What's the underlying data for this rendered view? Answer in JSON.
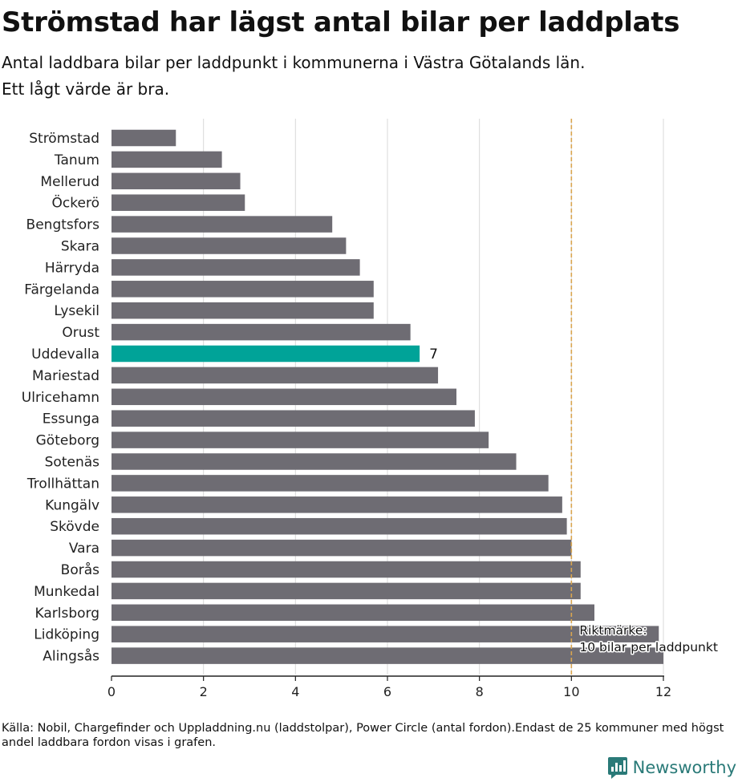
{
  "title": "Strömstad har lägst antal bilar per laddplats",
  "subtitle_lines": [
    "Antal laddbara bilar per laddpunkt i kommunerna i Västra Götalands län.",
    "Ett lågt värde är bra."
  ],
  "chart_data": {
    "type": "bar",
    "orientation": "horizontal",
    "categories": [
      "Strömstad",
      "Tanum",
      "Mellerud",
      "Öckerö",
      "Bengtsfors",
      "Skara",
      "Härryda",
      "Färgelanda",
      "Lysekil",
      "Orust",
      "Uddevalla",
      "Mariestad",
      "Ulricehamn",
      "Essunga",
      "Göteborg",
      "Sotenäs",
      "Trollhättan",
      "Kungälv",
      "Skövde",
      "Vara",
      "Borås",
      "Munkedal",
      "Karlsborg",
      "Lidköping",
      "Alingsås"
    ],
    "values": [
      1.4,
      2.4,
      2.8,
      2.9,
      4.8,
      5.1,
      5.4,
      5.7,
      5.7,
      6.5,
      6.7,
      7.1,
      7.5,
      7.9,
      8.2,
      8.8,
      9.5,
      9.8,
      9.9,
      10.0,
      10.2,
      10.2,
      10.5,
      11.9,
      12.0
    ],
    "highlight": "Uddevalla",
    "highlight_label": "7",
    "xlim": [
      0,
      12
    ],
    "xticks": [
      0,
      2,
      4,
      6,
      8,
      10,
      12
    ],
    "grid": true,
    "reference_line": {
      "value": 10,
      "label_lines": [
        "Riktmärke:",
        "10 bilar per laddpunkt"
      ]
    },
    "colors": {
      "bar": "#6e6c73",
      "highlight": "#00a398",
      "reference": "#d9a54f",
      "grid": "#d9d9d9"
    }
  },
  "footer": "Källa: Nobil, Chargefinder och Uppladdning.nu (laddstolpar), Power Circle (antal fordon).Endast de 25 kommuner med högst andel laddbara fordon visas i grafen.",
  "brand": {
    "name": "Newsworthy",
    "icon": "newsworthy-logo-icon",
    "color": "#2a7a78"
  }
}
